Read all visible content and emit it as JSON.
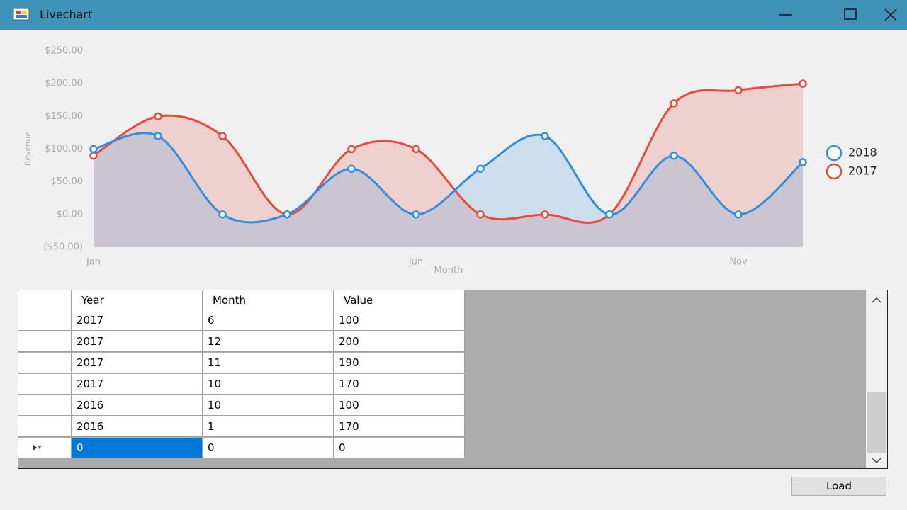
{
  "window": {
    "title": "Livechart"
  },
  "chart_data": {
    "type": "line",
    "x_label": "Month",
    "y_label": "Revenue",
    "categories": [
      "Jan",
      null,
      null,
      null,
      null,
      "Jun",
      null,
      null,
      null,
      null,
      "Nov",
      null
    ],
    "series": [
      {
        "name": "2018",
        "color": "#2f8fe0",
        "values": [
          100,
          120,
          0,
          0,
          70,
          0,
          70,
          120,
          0,
          90,
          0,
          80
        ]
      },
      {
        "name": "2017",
        "color": "#e84a3c",
        "values": [
          90,
          150,
          120,
          0,
          100,
          100,
          0,
          0,
          0,
          170,
          190,
          200
        ]
      }
    ],
    "ylim": [
      -50,
      250
    ],
    "yticks": [
      {
        "value": -50,
        "label": "($50.00)"
      },
      {
        "value": 0,
        "label": "$0.00"
      },
      {
        "value": 50,
        "label": "$50.00"
      },
      {
        "value": 100,
        "label": "$100.00"
      },
      {
        "value": 150,
        "label": "$150.00"
      },
      {
        "value": 200,
        "label": "$200.00"
      },
      {
        "value": 250,
        "label": "$250.00"
      }
    ],
    "grid": false,
    "smooth": true,
    "area": true,
    "legend": "right"
  },
  "table": {
    "columns": [
      "Year",
      "Month",
      "Value"
    ],
    "rows": [
      [
        "2017",
        "6",
        "100"
      ],
      [
        "2017",
        "12",
        "200"
      ],
      [
        "2017",
        "11",
        "190"
      ],
      [
        "2017",
        "10",
        "170"
      ],
      [
        "2016",
        "10",
        "100"
      ],
      [
        "2016",
        "1",
        "170"
      ]
    ],
    "new_row": [
      "0",
      "0",
      "0"
    ]
  },
  "buttons": {
    "load": "Load"
  }
}
